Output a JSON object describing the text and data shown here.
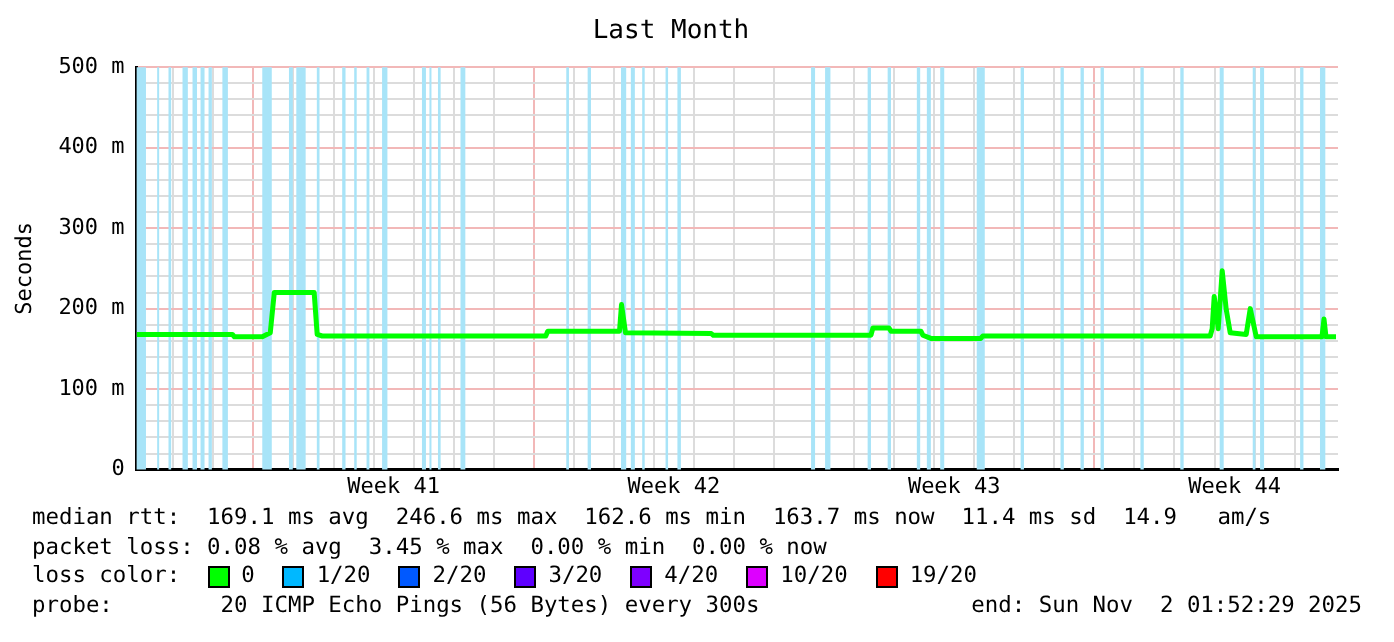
{
  "chart_data": {
    "type": "line",
    "title": "Last Month",
    "ylabel": "Seconds",
    "legend_title": "loss color:",
    "legend": "bottom",
    "grid": true,
    "marker": "none",
    "line_style": "solid",
    "xlim": [
      "2025-10-03T02:00",
      "2025-11-02T02:00"
    ],
    "xticks": [
      {
        "value": "2025-10-04",
        "label": null
      },
      {
        "value": "2025-10-05",
        "label": null
      },
      {
        "value": "2025-10-06",
        "label": null
      },
      {
        "value": "2025-10-07",
        "label": null
      },
      {
        "value": "2025-10-08",
        "label": null
      },
      {
        "value": "2025-10-09",
        "label": null
      },
      {
        "value": "2025-10-09T12:00",
        "label": "Week 41"
      },
      {
        "value": "2025-10-10",
        "label": null
      },
      {
        "value": "2025-10-11",
        "label": null
      },
      {
        "value": "2025-10-12",
        "label": null
      },
      {
        "value": "2025-10-13",
        "label": null
      },
      {
        "value": "2025-10-14",
        "label": null
      },
      {
        "value": "2025-10-15",
        "label": null
      },
      {
        "value": "2025-10-16",
        "label": null
      },
      {
        "value": "2025-10-16T12:00",
        "label": "Week 42"
      },
      {
        "value": "2025-10-17",
        "label": null
      },
      {
        "value": "2025-10-18",
        "label": null
      },
      {
        "value": "2025-10-19",
        "label": null
      },
      {
        "value": "2025-10-20",
        "label": null
      },
      {
        "value": "2025-10-21",
        "label": null
      },
      {
        "value": "2025-10-22",
        "label": null
      },
      {
        "value": "2025-10-23",
        "label": null
      },
      {
        "value": "2025-10-23T12:00",
        "label": "Week 43"
      },
      {
        "value": "2025-10-24",
        "label": null
      },
      {
        "value": "2025-10-25",
        "label": null
      },
      {
        "value": "2025-10-26",
        "label": null
      },
      {
        "value": "2025-10-27",
        "label": null
      },
      {
        "value": "2025-10-28",
        "label": null
      },
      {
        "value": "2025-10-29",
        "label": null
      },
      {
        "value": "2025-10-30",
        "label": null
      },
      {
        "value": "2025-10-30T12:00",
        "label": "Week 44"
      },
      {
        "value": "2025-10-31",
        "label": null
      },
      {
        "value": "2025-11-01",
        "label": null
      }
    ],
    "ylim": [
      0,
      500
    ],
    "yticks": [
      0,
      {
        "value": 20,
        "label": null
      },
      {
        "value": 40,
        "label": null
      },
      {
        "value": 60,
        "label": null
      },
      {
        "value": 80,
        "label": null
      },
      {
        "value": 100,
        "label": "100 m"
      },
      {
        "value": 120,
        "label": null
      },
      {
        "value": 140,
        "label": null
      },
      {
        "value": 160,
        "label": null
      },
      {
        "value": 180,
        "label": null
      },
      {
        "value": 200,
        "label": "200 m"
      },
      {
        "value": 220,
        "label": null
      },
      {
        "value": 240,
        "label": null
      },
      {
        "value": 260,
        "label": null
      },
      {
        "value": 280,
        "label": null
      },
      {
        "value": 300,
        "label": "300 m"
      },
      {
        "value": 320,
        "label": null
      },
      {
        "value": 340,
        "label": null
      },
      {
        "value": 360,
        "label": null
      },
      {
        "value": 380,
        "label": null
      },
      {
        "value": 400,
        "label": "400 m"
      },
      {
        "value": 420,
        "label": null
      },
      {
        "value": 440,
        "label": null
      },
      {
        "value": 460,
        "label": null
      },
      {
        "value": 480,
        "label": null
      },
      {
        "value": 500,
        "label": "500 m"
      }
    ],
    "series": [
      {
        "name": "0",
        "color": "#00ff00",
        "x": [
          "2025-10-03T02:00",
          "2025-10-05T11:24",
          "2025-10-05T12:36",
          "2025-10-06T05:18",
          "2025-10-06T10:06",
          "2025-10-06T12:30",
          "2025-10-07T12:24",
          "2025-10-07T14:12",
          "2025-10-07T17:12",
          "2025-10-13T07:12",
          "2025-10-13T08:24",
          "2025-10-15T03:24",
          "2025-10-15T04:36",
          "2025-10-15T07:00",
          "2025-10-17T10:24",
          "2025-10-17T11:36",
          "2025-10-21T10:06",
          "2025-10-21T11:18",
          "2025-10-21T20:54",
          "2025-10-21T22:06",
          "2025-10-22T16:00",
          "2025-10-22T17:12",
          "2025-10-22T22:00",
          "2025-10-24T03:54",
          "2025-10-24T05:06",
          "2025-10-29T21:24",
          "2025-10-29T22:36",
          "2025-10-29T23:48",
          "2025-10-30T02:12",
          "2025-10-30T04:36",
          "2025-10-30T07:00",
          "2025-10-30T09:24",
          "2025-10-30T19:00",
          "2025-10-30T21:24",
          "2025-10-31T01:00",
          "2025-11-01T16:24",
          "2025-11-01T17:36",
          "2025-11-01T18:48",
          "2025-11-02T00:48"
        ],
        "values": [
          168,
          168,
          165,
          165,
          170,
          220,
          220,
          168,
          166,
          166,
          172,
          172,
          205,
          170,
          169,
          167,
          167,
          176,
          176,
          172,
          172,
          167,
          163,
          163,
          166,
          166,
          175,
          215,
          175,
          247,
          199,
          170,
          168,
          200,
          165,
          165,
          187,
          165,
          165
        ]
      },
      {
        "name": "1/20",
        "color": "#00b8ff"
      },
      {
        "name": "2/20",
        "color": "#0059ff"
      },
      {
        "name": "3/20",
        "color": "#5e00ff"
      },
      {
        "name": "4/20",
        "color": "#7e00ff"
      },
      {
        "name": "10/20",
        "color": "#dd00ff"
      },
      {
        "name": "19/20",
        "color": "#ff0000"
      }
    ],
    "bands": [
      {
        "axis": "x",
        "from": "2025-10-03T02:00",
        "to": "2025-10-03T07:36",
        "color": "#a8e4f8"
      },
      {
        "axis": "x",
        "from": "2025-10-03T14:18",
        "to": "2025-10-03T15:30",
        "color": "#a8e4f8"
      },
      {
        "axis": "x",
        "from": "2025-10-03T21:06",
        "to": "2025-10-03T22:42",
        "color": "#a8e4f8"
      },
      {
        "axis": "x",
        "from": "2025-10-04T05:30",
        "to": "2025-10-04T08:42",
        "color": "#a8e4f8"
      },
      {
        "axis": "x",
        "from": "2025-10-04T11:30",
        "to": "2025-10-04T14:12",
        "color": "#a8e4f8"
      },
      {
        "axis": "x",
        "from": "2025-10-04T16:18",
        "to": "2025-10-04T18:42",
        "color": "#a8e4f8"
      },
      {
        "axis": "x",
        "from": "2025-10-04T21:06",
        "to": "2025-10-04T23:06",
        "color": "#a8e4f8"
      },
      {
        "axis": "x",
        "from": "2025-10-05T05:24",
        "to": "2025-10-05T08:42",
        "color": "#a8e4f8"
      },
      {
        "axis": "x",
        "from": "2025-10-06T05:18",
        "to": "2025-10-06T11:00",
        "color": "#a8e4f8"
      },
      {
        "axis": "x",
        "from": "2025-10-06T21:18",
        "to": "2025-10-06T23:36",
        "color": "#a8e4f8"
      },
      {
        "axis": "x",
        "from": "2025-10-07T01:42",
        "to": "2025-10-07T07:18",
        "color": "#a8e4f8"
      },
      {
        "axis": "x",
        "from": "2025-10-07T14:00",
        "to": "2025-10-07T15:36",
        "color": "#a8e4f8"
      },
      {
        "axis": "x",
        "from": "2025-10-08T05:12",
        "to": "2025-10-08T07:12",
        "color": "#a8e4f8"
      },
      {
        "axis": "x",
        "from": "2025-10-08T12:24",
        "to": "2025-10-08T13:54",
        "color": "#a8e4f8"
      },
      {
        "axis": "x",
        "from": "2025-10-08T19:48",
        "to": "2025-10-08T21:30",
        "color": "#a8e4f8"
      },
      {
        "axis": "x",
        "from": "2025-10-09T05:06",
        "to": "2025-10-09T08:18",
        "color": "#a8e4f8"
      },
      {
        "axis": "x",
        "from": "2025-10-10T05:00",
        "to": "2025-10-10T07:24",
        "color": "#a8e4f8"
      },
      {
        "axis": "x",
        "from": "2025-10-10T09:30",
        "to": "2025-10-10T10:42",
        "color": "#a8e4f8"
      },
      {
        "axis": "x",
        "from": "2025-10-10T14:36",
        "to": "2025-10-10T16:12",
        "color": "#a8e4f8"
      },
      {
        "axis": "x",
        "from": "2025-10-11T04:06",
        "to": "2025-10-11T07:00",
        "color": "#a8e4f8"
      },
      {
        "axis": "x",
        "from": "2025-10-13T19:30",
        "to": "2025-10-13T21:06",
        "color": "#a8e4f8"
      },
      {
        "axis": "x",
        "from": "2025-10-14T08:18",
        "to": "2025-10-14T10:18",
        "color": "#a8e4f8"
      },
      {
        "axis": "x",
        "from": "2025-10-15T04:18",
        "to": "2025-10-15T07:24",
        "color": "#a8e4f8"
      },
      {
        "axis": "x",
        "from": "2025-10-15T10:12",
        "to": "2025-10-15T12:36",
        "color": "#a8e4f8"
      },
      {
        "axis": "x",
        "from": "2025-10-15T17:00",
        "to": "2025-10-15T18:30",
        "color": "#a8e4f8"
      },
      {
        "axis": "x",
        "from": "2025-10-16T07:00",
        "to": "2025-10-16T08:30",
        "color": "#a8e4f8"
      },
      {
        "axis": "x",
        "from": "2025-10-16T14:06",
        "to": "2025-10-16T16:12",
        "color": "#a8e4f8"
      },
      {
        "axis": "x",
        "from": "2025-10-19T22:12",
        "to": "2025-10-20T00:36",
        "color": "#a8e4f8"
      },
      {
        "axis": "x",
        "from": "2025-10-20T06:36",
        "to": "2025-10-20T09:48",
        "color": "#a8e4f8"
      },
      {
        "axis": "x",
        "from": "2025-10-21T08:06",
        "to": "2025-10-21T10:06",
        "color": "#a8e4f8"
      },
      {
        "axis": "x",
        "from": "2025-10-21T20:06",
        "to": "2025-10-21T22:06",
        "color": "#a8e4f8"
      },
      {
        "axis": "x",
        "from": "2025-10-22T13:36",
        "to": "2025-10-22T15:36",
        "color": "#a8e4f8"
      },
      {
        "axis": "x",
        "from": "2025-10-22T19:36",
        "to": "2025-10-22T22:00",
        "color": "#a8e4f8"
      },
      {
        "axis": "x",
        "from": "2025-10-23T03:36",
        "to": "2025-10-23T06:00",
        "color": "#a8e4f8"
      },
      {
        "axis": "x",
        "from": "2025-10-24T01:30",
        "to": "2025-10-24T06:18",
        "color": "#a8e4f8"
      },
      {
        "axis": "x",
        "from": "2025-10-25T03:48",
        "to": "2025-10-25T05:48",
        "color": "#a8e4f8"
      },
      {
        "axis": "x",
        "from": "2025-10-26T03:42",
        "to": "2025-10-26T05:42",
        "color": "#a8e4f8"
      },
      {
        "axis": "x",
        "from": "2025-10-26T15:42",
        "to": "2025-10-26T17:42",
        "color": "#a8e4f8"
      },
      {
        "axis": "x",
        "from": "2025-10-27T03:42",
        "to": "2025-10-27T05:42",
        "color": "#a8e4f8"
      },
      {
        "axis": "x",
        "from": "2025-10-28T03:36",
        "to": "2025-10-28T05:36",
        "color": "#a8e4f8"
      },
      {
        "axis": "x",
        "from": "2025-10-29T03:30",
        "to": "2025-10-29T05:30",
        "color": "#a8e4f8"
      },
      {
        "axis": "x",
        "from": "2025-10-30T03:06",
        "to": "2025-10-30T05:30",
        "color": "#a8e4f8"
      },
      {
        "axis": "x",
        "from": "2025-10-30T22:54",
        "to": "2025-10-31T00:30",
        "color": "#a8e4f8"
      },
      {
        "axis": "x",
        "from": "2025-10-31T03:18",
        "to": "2025-10-31T05:42",
        "color": "#a8e4f8"
      },
      {
        "axis": "x",
        "from": "2025-11-01T03:18",
        "to": "2025-11-01T05:18",
        "color": "#a8e4f8"
      },
      {
        "axis": "x",
        "from": "2025-11-01T15:12",
        "to": "2025-11-01T18:24",
        "color": "#a8e4f8"
      }
    ],
    "annotations": [
      "median rtt:  169.1 ms avg  246.6 ms max  162.6 ms min  163.7 ms now  11.4 ms sd  14.9   am/s",
      "packet loss: 0.08 % avg  3.45 % max  0.00 % min  0.00 % now",
      "probe:        20 ICMP Echo Pings (56 Bytes) every 300s",
      "end: Sun Nov  2 01:52:29 2025"
    ]
  }
}
